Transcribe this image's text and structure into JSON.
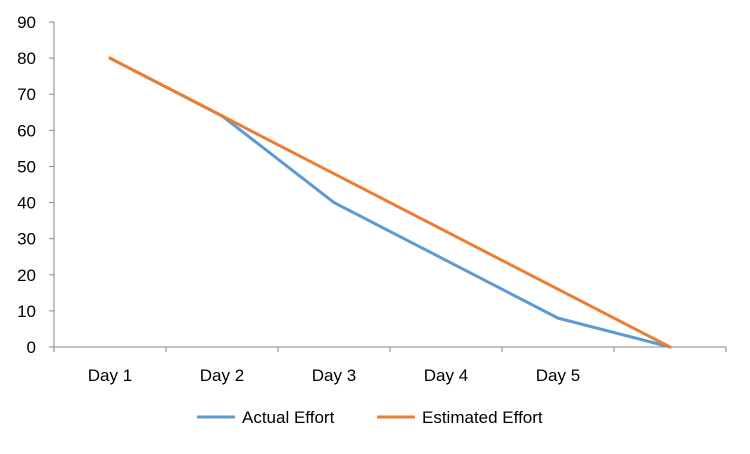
{
  "chart_data": {
    "type": "line",
    "title": "",
    "xlabel": "",
    "ylabel": "",
    "categories": [
      "Day 1",
      "Day 2",
      "Day 3",
      "Day 4",
      "Day 5",
      ""
    ],
    "ylim": [
      0,
      90
    ],
    "yticks": [
      0,
      10,
      20,
      30,
      40,
      50,
      60,
      70,
      80,
      90
    ],
    "grid": false,
    "legend_position": "bottom",
    "series": [
      {
        "name": "Actual Effort",
        "color": "#5b9bd5",
        "values": [
          80,
          64,
          40,
          24,
          8,
          0
        ]
      },
      {
        "name": "Estimated Effort",
        "color": "#ed7d31",
        "values": [
          80,
          64,
          48,
          32,
          16,
          0
        ]
      }
    ]
  }
}
